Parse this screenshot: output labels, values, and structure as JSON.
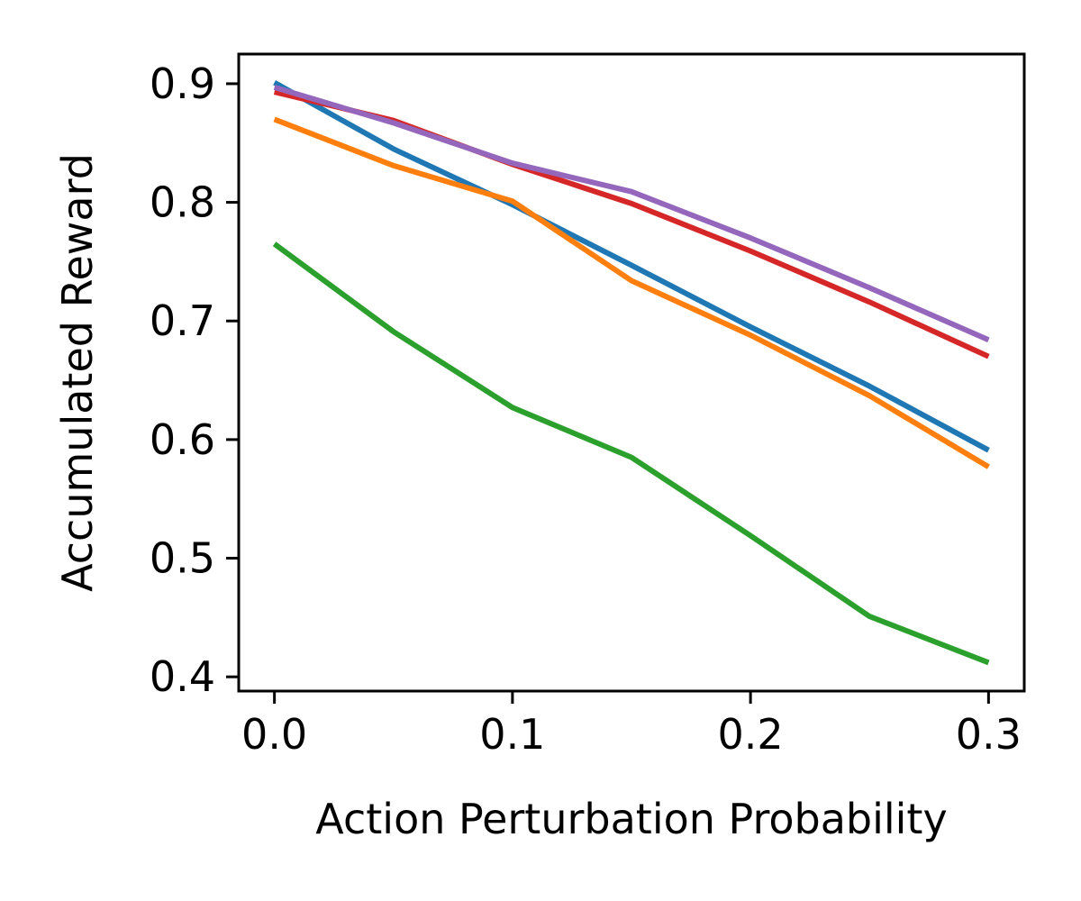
{
  "chart_data": {
    "type": "line",
    "xlabel": "Action Perturbation Probability",
    "ylabel": "Accumulated Reward",
    "xlim": [
      -0.015,
      0.315
    ],
    "ylim": [
      0.388,
      0.925
    ],
    "xticks": [
      0.0,
      0.1,
      0.2,
      0.3
    ],
    "xtick_labels": [
      "0.0",
      "0.1",
      "0.2",
      "0.3"
    ],
    "yticks": [
      0.4,
      0.5,
      0.6,
      0.7,
      0.8,
      0.9
    ],
    "ytick_labels": [
      "0.4",
      "0.5",
      "0.6",
      "0.7",
      "0.8",
      "0.9"
    ],
    "grid": false,
    "x": [
      0.0,
      0.05,
      0.1,
      0.15,
      0.2,
      0.25,
      0.3
    ],
    "series": [
      {
        "color": "#1f77b4",
        "values": [
          0.901,
          0.845,
          0.798,
          0.747,
          0.695,
          0.645,
          0.591
        ]
      },
      {
        "color": "#ff7f0e",
        "values": [
          0.87,
          0.831,
          0.801,
          0.734,
          0.688,
          0.637,
          0.577
        ]
      },
      {
        "color": "#2ca02c",
        "values": [
          0.765,
          0.691,
          0.627,
          0.585,
          0.519,
          0.451,
          0.412
        ]
      },
      {
        "color": "#d62728",
        "values": [
          0.893,
          0.869,
          0.832,
          0.799,
          0.759,
          0.716,
          0.67
        ]
      },
      {
        "color": "#9467bd",
        "values": [
          0.897,
          0.867,
          0.833,
          0.809,
          0.77,
          0.728,
          0.684
        ]
      }
    ]
  }
}
